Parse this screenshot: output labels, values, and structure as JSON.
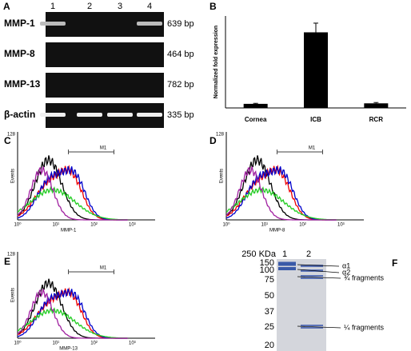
{
  "panel_a": {
    "letter": "A",
    "lanes": [
      "1",
      "2",
      "3",
      "4"
    ],
    "rows": [
      {
        "label": "MMP-1",
        "size": "639 bp"
      },
      {
        "label": "MMP-8",
        "size": "464 bp"
      },
      {
        "label": "MMP-13",
        "size": "782 bp"
      },
      {
        "label": "β-actin",
        "size": "335 bp"
      }
    ]
  },
  "chart_data": {
    "type": "bar",
    "letter": "B",
    "ylabel": "Normalized fold expression",
    "categories": [
      "Cornea",
      "ICB",
      "RCR"
    ],
    "values": [
      0.4,
      7.4,
      0.45
    ],
    "errors": [
      0.05,
      0.9,
      0.08
    ],
    "ylim": [
      0,
      9
    ],
    "color": "#000000"
  },
  "histograms": [
    {
      "letter": "C",
      "ymax": "128",
      "ylabel": "Events",
      "xlabel": "MMP-1",
      "gate": "M1",
      "xticks": [
        "10⁰",
        "10¹",
        "10²",
        "10³"
      ]
    },
    {
      "letter": "D",
      "ymax": "128",
      "ylabel": "Events",
      "xlabel": "MMP-8",
      "gate": "M1",
      "xticks": [
        "10⁰",
        "10¹",
        "10²",
        "10³"
      ]
    },
    {
      "letter": "E",
      "ymax": "128",
      "ylabel": "Events",
      "xlabel": "MMP-13",
      "gate": "M1",
      "xticks": [
        "10⁰",
        "10¹",
        "10²",
        "10³"
      ]
    }
  ],
  "panel_f": {
    "letter": "F",
    "unit": "250 KDa",
    "lanes": [
      "1",
      "2"
    ],
    "markers": [
      "150",
      "100",
      "75",
      "50",
      "37",
      "25",
      "20"
    ],
    "bands": [
      "α1",
      "α2",
      "¾ fragments",
      "¼ fragments"
    ]
  }
}
